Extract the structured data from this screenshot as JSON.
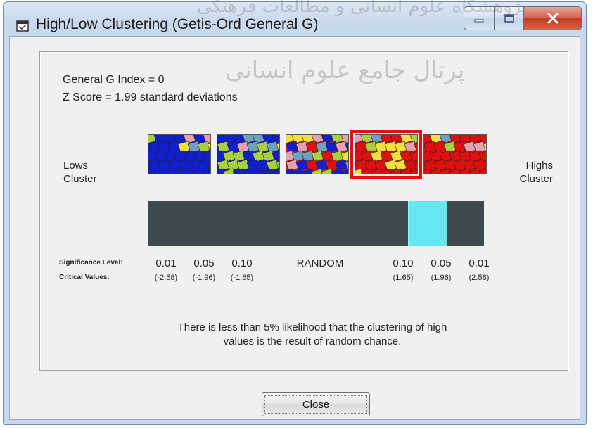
{
  "window": {
    "title": "High/Low Clustering (Getis-Ord General G)",
    "icon": "window-app-icon"
  },
  "stats": {
    "general_g": "General G Index = 0",
    "z_score": "Z Score = 1.99 standard deviations"
  },
  "legend": {
    "lows": "Lows",
    "lows_cluster": "Cluster",
    "highs": "Highs",
    "highs_cluster": "Cluster"
  },
  "thumbnails": [
    {
      "name": "lows-cluster-strong",
      "selected": false
    },
    {
      "name": "lows-cluster-weak",
      "selected": false
    },
    {
      "name": "random-pattern",
      "selected": false
    },
    {
      "name": "highs-cluster-weak",
      "selected": true
    },
    {
      "name": "highs-cluster-strong",
      "selected": false
    }
  ],
  "scale": {
    "marker_segment": "0.05 high side",
    "colors": {
      "bar": "#3c4a4d",
      "marker": "#66e6f0",
      "highlight": "#e01010"
    }
  },
  "labels": {
    "significance_level": "Significance Level:",
    "critical_values": "Critical Values:"
  },
  "significance": [
    {
      "level": "0.01",
      "critical": "(-2.58)"
    },
    {
      "level": "0.05",
      "critical": "(-1.96)"
    },
    {
      "level": "0.10",
      "critical": "(-1.65)"
    },
    {
      "level": "RANDOM",
      "critical": ""
    },
    {
      "level": "0.10",
      "critical": "(1.65)"
    },
    {
      "level": "0.05",
      "critical": "(1.96)"
    },
    {
      "level": "0.01",
      "critical": "(2.58)"
    }
  ],
  "message": {
    "line1": "There is less than 5% likelihood that the clustering of high",
    "line2": "values is the result of random chance."
  },
  "buttons": {
    "close": "Close"
  },
  "watermark": {
    "top": "پژوهشگاه علوم انسانی و مطالعات فرهنگی",
    "middle": "پرتال جامع علوم انسانی"
  }
}
